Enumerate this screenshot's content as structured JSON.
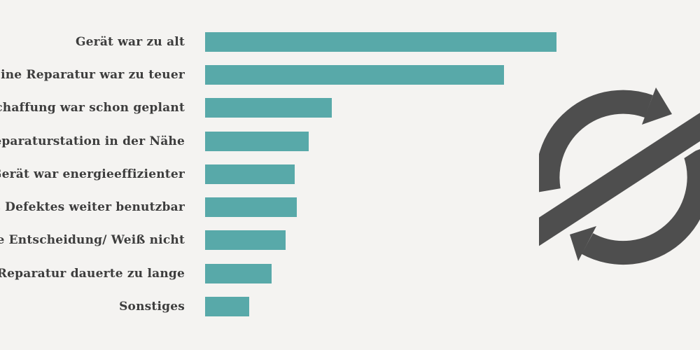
{
  "chart_data": {
    "type": "bar",
    "orientation": "horizontal",
    "title": "",
    "xlabel": "",
    "ylabel": "",
    "grid": false,
    "legend": false,
    "categories": [
      "Gerät war zu alt",
      "Eine Reparatur war zu teuer",
      "schaffung war schon geplant",
      "eparaturstation in der Nähe",
      "Gerät war energieeffizienter",
      "s Defektes weiter benutzbar",
      "e Entscheidung/ Weiß nicht",
      "Reparatur dauerte zu lange",
      "Sonstiges"
    ],
    "values": [
      100,
      85,
      36,
      29.5,
      25.5,
      26,
      23,
      19,
      12.5
    ],
    "values_note": "relative bar lengths, percent of longest bar, estimated from pixels; no numeric axis shown",
    "xlim": [
      0,
      100
    ],
    "bar_color": "#58a9a9",
    "label_color": "#3d3d3d",
    "background_color": "#f4f3f1"
  },
  "icon": {
    "name": "circular-arrows-with-slash",
    "color": "#4e4e4e",
    "gap_color": "#f4f3f1"
  }
}
